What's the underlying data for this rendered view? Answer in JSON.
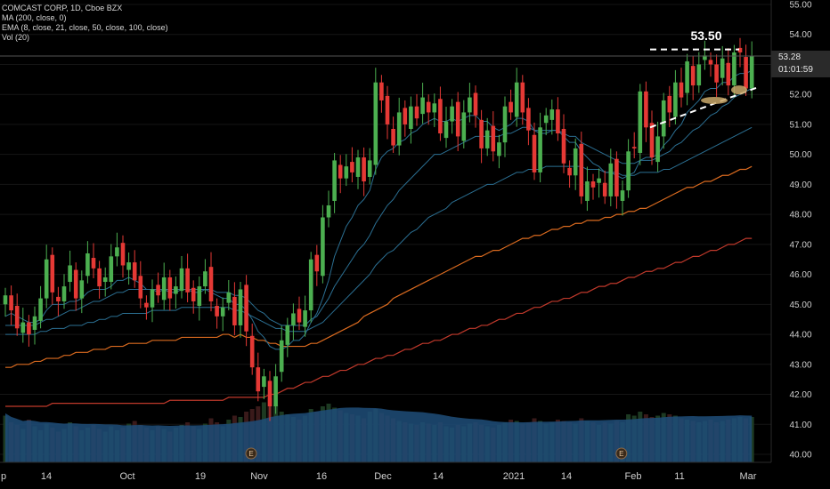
{
  "header": {
    "symbol_line": "COMCAST CORP, 1D, Cboe BZX",
    "indicators": [
      "MA (200, close, 0)",
      "EMA (8, close, 21, close, 50, close, 100, close)",
      "Vol (20)"
    ]
  },
  "price_label": {
    "price": "53.28",
    "countdown": "01:01:59"
  },
  "annotation": {
    "resistance_label": "53.50"
  },
  "event_marker_label": "E",
  "colors": {
    "background": "#000000",
    "up": "#4caf50",
    "down": "#e53935",
    "ema_fast": "#2b6f92",
    "ema_slow": "#d96a1f",
    "ma200": "#c0392b",
    "volume_area": "#1f4e79"
  },
  "chart_data": {
    "type": "candlestick",
    "ylim": [
      40,
      55
    ],
    "y_ticks": [
      "55.00",
      "54.00",
      "53.00",
      "52.00",
      "51.00",
      "50.00",
      "49.00",
      "48.00",
      "47.00",
      "46.00",
      "45.00",
      "44.00",
      "43.00",
      "42.00",
      "41.00",
      "40.00"
    ],
    "x_ticks": [
      "p",
      "14",
      "Oct",
      "19",
      "Nov",
      "16",
      "Dec",
      "14",
      "2021",
      "14",
      "Feb",
      "11",
      "Mar"
    ],
    "close": [
      45.3,
      44.8,
      44.2,
      44.4,
      44.0,
      44.6,
      45.2,
      46.5,
      45.4,
      45.1,
      45.6,
      46.3,
      45.2,
      45.8,
      46.7,
      46.2,
      45.6,
      45.9,
      46.6,
      46.9,
      46.3,
      46.4,
      45.8,
      45.2,
      44.9,
      45.5,
      45.3,
      45.9,
      45.2,
      45.6,
      46.2,
      45.4,
      45.1,
      45.6,
      46.1,
      45.1,
      44.6,
      44.9,
      45.4,
      44.3,
      45.5,
      44.1,
      42.9,
      42.1,
      42.6,
      41.6,
      42.6,
      43.8,
      44.3,
      44.7,
      44.4,
      44.8,
      46.5,
      46.1,
      47.9,
      48.3,
      49.8,
      49.2,
      49.6,
      49.4,
      49.9,
      49.1,
      49.8,
      52.4,
      51.8,
      51.0,
      50.3,
      51.4,
      51.0,
      51.6,
      51.2,
      51.9,
      51.4,
      51.7,
      50.7,
      51.1,
      51.6,
      50.6,
      51.4,
      51.9,
      51.3,
      50.2,
      50.8,
      50.1,
      50.4,
      51.6,
      51.4,
      52.4,
      51.4,
      50.8,
      49.4,
      50.9,
      51.3,
      51.5,
      50.7,
      49.7,
      49.3,
      50.2,
      48.6,
      49.1,
      48.9,
      49.2,
      48.6,
      49.7,
      48.6,
      48.8,
      50.1,
      50.2,
      52.1,
      50.9,
      49.9,
      50.6,
      51.8,
      51.4,
      52.4,
      51.9,
      53.1,
      52.3,
      53.0,
      53.3,
      53.0,
      52.4,
      53.2,
      52.3,
      53.4,
      53.4,
      52.2,
      53.28
    ],
    "ema_fast": [
      44.6,
      44.7,
      44.6,
      44.5,
      44.4,
      44.4,
      44.5,
      44.8,
      45.0,
      45.0,
      45.0,
      45.1,
      45.1,
      45.2,
      45.4,
      45.5,
      45.5,
      45.5,
      45.6,
      45.8,
      45.8,
      45.9,
      45.8,
      45.7,
      45.5,
      45.5,
      45.4,
      45.5,
      45.4,
      45.4,
      45.5,
      45.5,
      45.4,
      45.4,
      45.5,
      45.4,
      45.3,
      45.2,
      45.2,
      45.0,
      45.0,
      44.8,
      44.5,
      44.1,
      43.9,
      43.6,
      43.5,
      43.5,
      43.6,
      43.8,
      43.8,
      44.0,
      44.4,
      44.7,
      45.2,
      45.8,
      46.6,
      47.1,
      47.6,
      47.9,
      48.3,
      48.5,
      48.8,
      49.5,
      49.9,
      50.1,
      50.2,
      50.4,
      50.5,
      50.7,
      50.8,
      51.0,
      51.1,
      51.2,
      51.1,
      51.1,
      51.2,
      51.1,
      51.2,
      51.3,
      51.3,
      51.1,
      51.1,
      50.9,
      50.8,
      50.9,
      51.0,
      51.2,
      51.2,
      51.1,
      50.8,
      50.7,
      50.7,
      50.8,
      50.8,
      50.6,
      50.4,
      50.4,
      50.1,
      49.9,
      49.7,
      49.6,
      49.4,
      49.4,
      49.3,
      49.2,
      49.3,
      49.4,
      49.8,
      49.9,
      49.9,
      50.0,
      50.3,
      50.5,
      50.8,
      51.0,
      51.4,
      51.6,
      51.8,
      52.1,
      52.2,
      52.2,
      52.4,
      52.4,
      52.6,
      52.7,
      52.7,
      52.8
    ],
    "ema_mid": [
      44.3,
      44.3,
      44.3,
      44.3,
      44.3,
      44.3,
      44.4,
      44.5,
      44.5,
      44.6,
      44.7,
      44.8,
      44.8,
      44.9,
      45.0,
      45.1,
      45.1,
      45.2,
      45.3,
      45.4,
      45.4,
      45.5,
      45.5,
      45.5,
      45.5,
      45.5,
      45.5,
      45.5,
      45.5,
      45.5,
      45.5,
      45.5,
      45.5,
      45.5,
      45.5,
      45.5,
      45.4,
      45.4,
      45.4,
      45.3,
      45.3,
      45.2,
      45.0,
      44.8,
      44.7,
      44.5,
      44.4,
      44.3,
      44.3,
      44.3,
      44.3,
      44.3,
      44.5,
      44.6,
      44.9,
      45.2,
      45.6,
      45.9,
      46.2,
      46.5,
      46.8,
      47.0,
      47.3,
      47.7,
      48.0,
      48.3,
      48.5,
      48.8,
      49.0,
      49.2,
      49.4,
      49.6,
      49.8,
      50.0,
      50.0,
      50.1,
      50.2,
      50.3,
      50.4,
      50.5,
      50.6,
      50.6,
      50.6,
      50.6,
      50.6,
      50.7,
      50.7,
      50.8,
      50.9,
      50.9,
      50.8,
      50.8,
      50.8,
      50.8,
      50.8,
      50.7,
      50.6,
      50.6,
      50.4,
      50.3,
      50.2,
      50.1,
      50.0,
      49.9,
      49.8,
      49.7,
      49.7,
      49.7,
      49.8,
      49.8,
      49.8,
      49.9,
      50.0,
      50.1,
      50.3,
      50.4,
      50.6,
      50.8,
      50.9,
      51.1,
      51.3,
      51.4,
      51.6,
      51.7,
      51.9,
      52.0,
      52.1,
      52.2
    ],
    "ema_50": [
      44.0,
      44.0,
      44.0,
      44.0,
      44.0,
      44.0,
      44.1,
      44.1,
      44.2,
      44.2,
      44.2,
      44.3,
      44.3,
      44.3,
      44.4,
      44.4,
      44.5,
      44.5,
      44.6,
      44.6,
      44.7,
      44.7,
      44.7,
      44.7,
      44.7,
      44.8,
      44.8,
      44.8,
      44.8,
      44.8,
      44.9,
      44.9,
      44.9,
      44.9,
      44.9,
      44.9,
      44.9,
      44.9,
      44.9,
      44.8,
      44.8,
      44.7,
      44.6,
      44.5,
      44.4,
      44.3,
      44.2,
      44.2,
      44.1,
      44.1,
      44.1,
      44.1,
      44.2,
      44.3,
      44.4,
      44.6,
      44.8,
      45.0,
      45.2,
      45.4,
      45.6,
      45.8,
      46.0,
      46.3,
      46.5,
      46.7,
      46.8,
      47.0,
      47.2,
      47.4,
      47.5,
      47.7,
      47.9,
      48.0,
      48.1,
      48.2,
      48.4,
      48.5,
      48.6,
      48.7,
      48.8,
      48.9,
      49.0,
      49.0,
      49.1,
      49.2,
      49.3,
      49.4,
      49.4,
      49.5,
      49.5,
      49.5,
      49.6,
      49.6,
      49.6,
      49.6,
      49.6,
      49.6,
      49.6,
      49.5,
      49.5,
      49.5,
      49.4,
      49.4,
      49.4,
      49.3,
      49.3,
      49.3,
      49.4,
      49.4,
      49.4,
      49.4,
      49.5,
      49.5,
      49.6,
      49.7,
      49.8,
      49.9,
      50.0,
      50.1,
      50.2,
      50.3,
      50.4,
      50.5,
      50.6,
      50.7,
      50.8,
      50.9
    ],
    "ema_100": [
      42.9,
      42.9,
      43.0,
      43.0,
      43.0,
      43.1,
      43.1,
      43.2,
      43.2,
      43.2,
      43.3,
      43.3,
      43.4,
      43.4,
      43.4,
      43.5,
      43.5,
      43.5,
      43.6,
      43.6,
      43.6,
      43.7,
      43.7,
      43.7,
      43.7,
      43.8,
      43.8,
      43.8,
      43.8,
      43.8,
      43.9,
      43.9,
      43.9,
      43.9,
      43.9,
      43.9,
      43.9,
      44.0,
      44.0,
      43.9,
      44.0,
      43.9,
      43.9,
      43.8,
      43.8,
      43.7,
      43.7,
      43.6,
      43.6,
      43.6,
      43.6,
      43.6,
      43.7,
      43.7,
      43.8,
      43.9,
      44.0,
      44.1,
      44.2,
      44.3,
      44.4,
      44.6,
      44.7,
      44.8,
      44.9,
      45.0,
      45.2,
      45.3,
      45.4,
      45.5,
      45.6,
      45.7,
      45.8,
      45.9,
      46.0,
      46.1,
      46.2,
      46.3,
      46.4,
      46.5,
      46.6,
      46.6,
      46.7,
      46.8,
      46.8,
      46.9,
      47.0,
      47.1,
      47.2,
      47.2,
      47.3,
      47.3,
      47.4,
      47.5,
      47.5,
      47.6,
      47.6,
      47.7,
      47.7,
      47.8,
      47.8,
      47.8,
      47.9,
      47.9,
      48.0,
      48.0,
      48.1,
      48.1,
      48.2,
      48.2,
      48.3,
      48.4,
      48.5,
      48.6,
      48.7,
      48.8,
      48.9,
      48.9,
      49.0,
      49.1,
      49.1,
      49.2,
      49.3,
      49.3,
      49.4,
      49.5,
      49.5,
      49.6
    ],
    "ma_200": [
      41.6,
      41.6,
      41.6,
      41.6,
      41.6,
      41.6,
      41.6,
      41.6,
      41.7,
      41.7,
      41.7,
      41.7,
      41.7,
      41.7,
      41.7,
      41.7,
      41.7,
      41.7,
      41.7,
      41.7,
      41.7,
      41.7,
      41.7,
      41.7,
      41.7,
      41.7,
      41.7,
      41.7,
      41.8,
      41.8,
      41.8,
      41.8,
      41.8,
      41.8,
      41.8,
      41.8,
      41.8,
      41.8,
      41.9,
      41.9,
      41.9,
      41.9,
      41.9,
      41.9,
      41.9,
      42.0,
      42.0,
      42.1,
      42.2,
      42.2,
      42.3,
      42.4,
      42.4,
      42.5,
      42.6,
      42.6,
      42.7,
      42.8,
      42.8,
      42.9,
      43.0,
      43.0,
      43.1,
      43.2,
      43.2,
      43.3,
      43.3,
      43.4,
      43.5,
      43.5,
      43.6,
      43.7,
      43.7,
      43.8,
      43.8,
      43.9,
      44.0,
      44.0,
      44.1,
      44.2,
      44.2,
      44.3,
      44.3,
      44.4,
      44.5,
      44.5,
      44.6,
      44.7,
      44.7,
      44.8,
      44.9,
      44.9,
      45.0,
      45.1,
      45.1,
      45.2,
      45.2,
      45.3,
      45.4,
      45.4,
      45.5,
      45.6,
      45.6,
      45.7,
      45.7,
      45.8,
      45.9,
      45.9,
      46.0,
      46.1,
      46.1,
      46.2,
      46.2,
      46.3,
      46.4,
      46.4,
      46.5,
      46.6,
      46.6,
      46.7,
      46.8,
      46.8,
      46.9,
      47.0,
      47.0,
      47.1,
      47.2,
      47.2
    ],
    "volume": [
      0.35,
      0.3,
      0.28,
      0.25,
      0.32,
      0.27,
      0.24,
      0.29,
      0.26,
      0.23,
      0.25,
      0.3,
      0.27,
      0.24,
      0.26,
      0.28,
      0.25,
      0.23,
      0.27,
      0.24,
      0.26,
      0.29,
      0.31,
      0.28,
      0.26,
      0.24,
      0.27,
      0.25,
      0.23,
      0.26,
      0.28,
      0.3,
      0.27,
      0.25,
      0.29,
      0.33,
      0.3,
      0.27,
      0.32,
      0.35,
      0.34,
      0.38,
      0.4,
      0.42,
      0.45,
      0.48,
      0.43,
      0.38,
      0.36,
      0.34,
      0.32,
      0.35,
      0.4,
      0.38,
      0.42,
      0.44,
      0.41,
      0.39,
      0.37,
      0.36,
      0.35,
      0.33,
      0.38,
      0.4,
      0.37,
      0.35,
      0.33,
      0.31,
      0.3,
      0.29,
      0.28,
      0.3,
      0.29,
      0.28,
      0.3,
      0.27,
      0.26,
      0.28,
      0.27,
      0.29,
      0.3,
      0.28,
      0.27,
      0.26,
      0.28,
      0.3,
      0.32,
      0.31,
      0.29,
      0.3,
      0.33,
      0.31,
      0.29,
      0.3,
      0.32,
      0.31,
      0.3,
      0.29,
      0.33,
      0.31,
      0.3,
      0.28,
      0.3,
      0.29,
      0.31,
      0.3,
      0.36,
      0.35,
      0.38,
      0.36,
      0.34,
      0.35,
      0.37,
      0.36,
      0.35,
      0.33,
      0.32,
      0.31,
      0.3,
      0.31,
      0.32,
      0.3,
      0.31,
      0.32,
      0.33,
      0.34,
      0.33,
      0.34
    ],
    "resistance_level": 53.5,
    "earnings_markers_at_index": [
      40,
      103
    ]
  }
}
